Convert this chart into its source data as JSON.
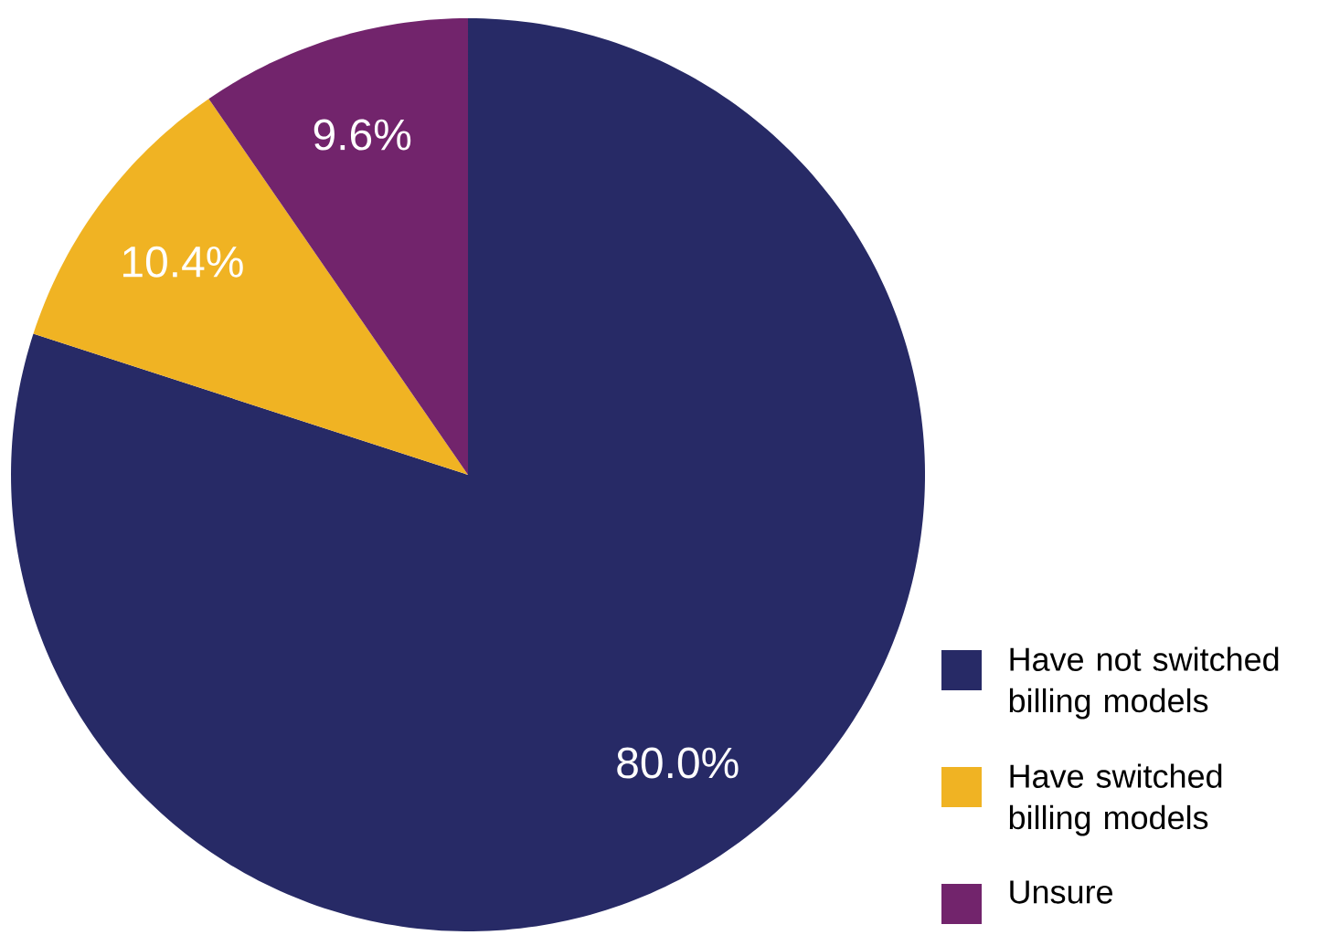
{
  "chart_data": {
    "type": "pie",
    "categories": [
      "Have not switched billing models",
      "Have switched billing models",
      "Unsure"
    ],
    "values": [
      80.0,
      10.4,
      9.6
    ],
    "colors": [
      "#272a66",
      "#f0b323",
      "#72246c"
    ],
    "value_labels": [
      "80.0%",
      "10.4%",
      "9.6%"
    ],
    "legend": "bottom right"
  }
}
